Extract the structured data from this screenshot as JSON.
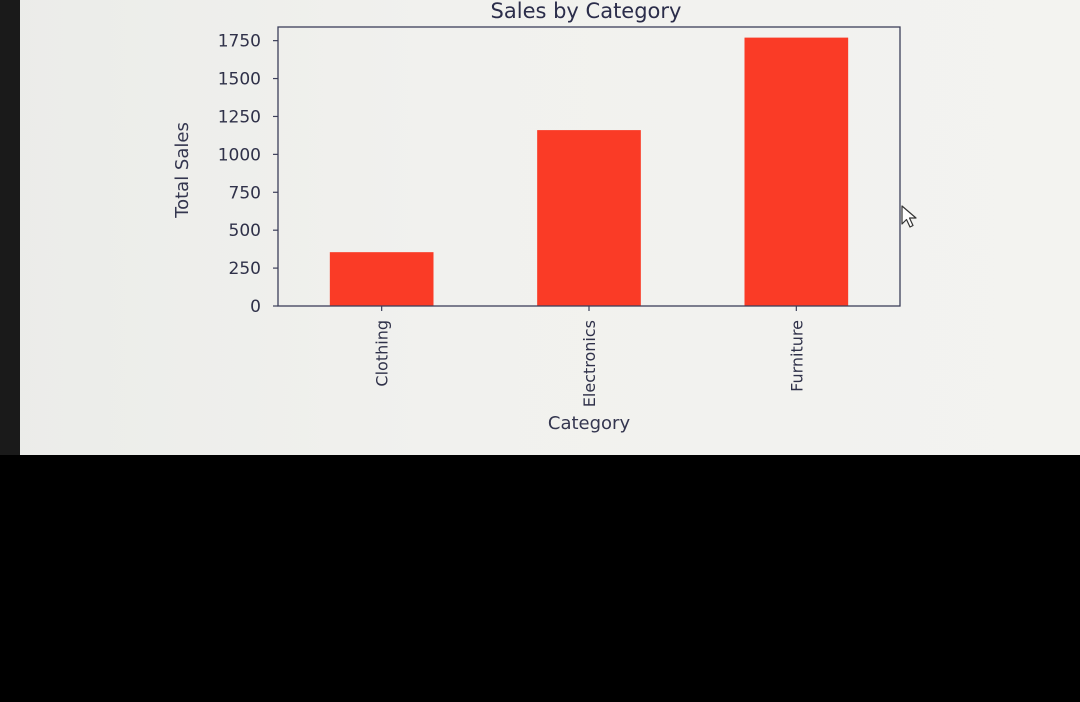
{
  "chart_data": {
    "type": "bar",
    "title": "Sales by Category",
    "xlabel": "Category",
    "ylabel": "Total Sales",
    "categories": [
      "Clothing",
      "Electronics",
      "Furniture"
    ],
    "values": [
      355,
      1160,
      1770
    ],
    "ylim": [
      0,
      1840
    ],
    "yticks": [
      0,
      250,
      500,
      750,
      1000,
      1250,
      1500,
      1750
    ],
    "ytick_labels": [
      "0",
      "250",
      "500",
      "750",
      "1000",
      "1250",
      "1500",
      "1750"
    ],
    "grid": false,
    "legend": "none",
    "bar_color": "#fa3b26",
    "xtick_rotation": "vertical"
  }
}
